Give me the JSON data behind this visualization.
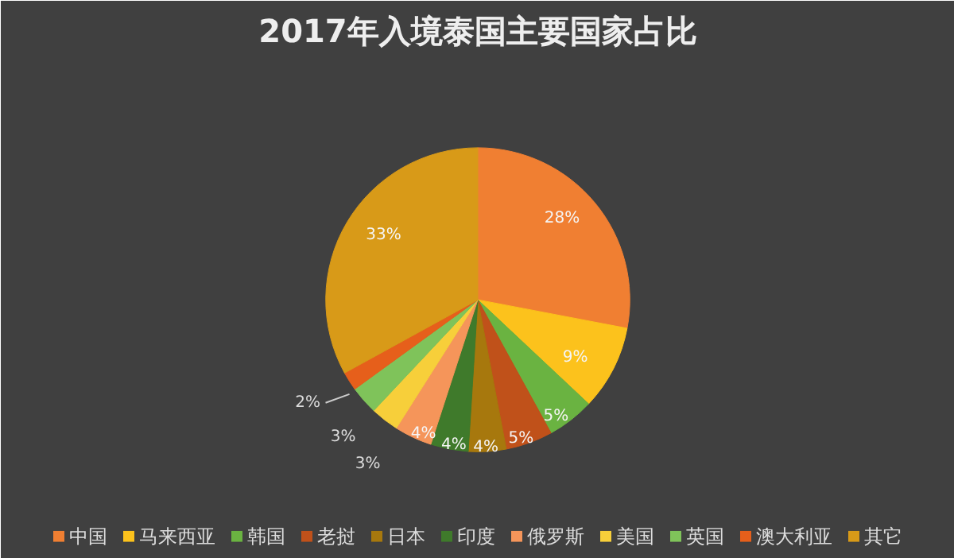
{
  "chart_data": {
    "type": "pie",
    "title": "2017年入境泰国主要国家占比",
    "categories": [
      "中国",
      "马来西亚",
      "韩国",
      "老挝",
      "日本",
      "印度",
      "俄罗斯",
      "美国",
      "英国",
      "澳大利亚",
      "其它"
    ],
    "values": [
      28,
      9,
      5,
      5,
      4,
      4,
      4,
      3,
      3,
      2,
      33
    ],
    "value_labels": [
      "28%",
      "9%",
      "5%",
      "5%",
      "4%",
      "4%",
      "4%",
      "3%",
      "3%",
      "2%",
      "33%"
    ],
    "colors": [
      "#f07f32",
      "#fcc21c",
      "#6ab341",
      "#c0511a",
      "#a7780d",
      "#3f7a2b",
      "#f5955a",
      "#f7cf3a",
      "#7fc35a",
      "#e65f1b",
      "#d89a18"
    ],
    "legend": "bottom"
  }
}
